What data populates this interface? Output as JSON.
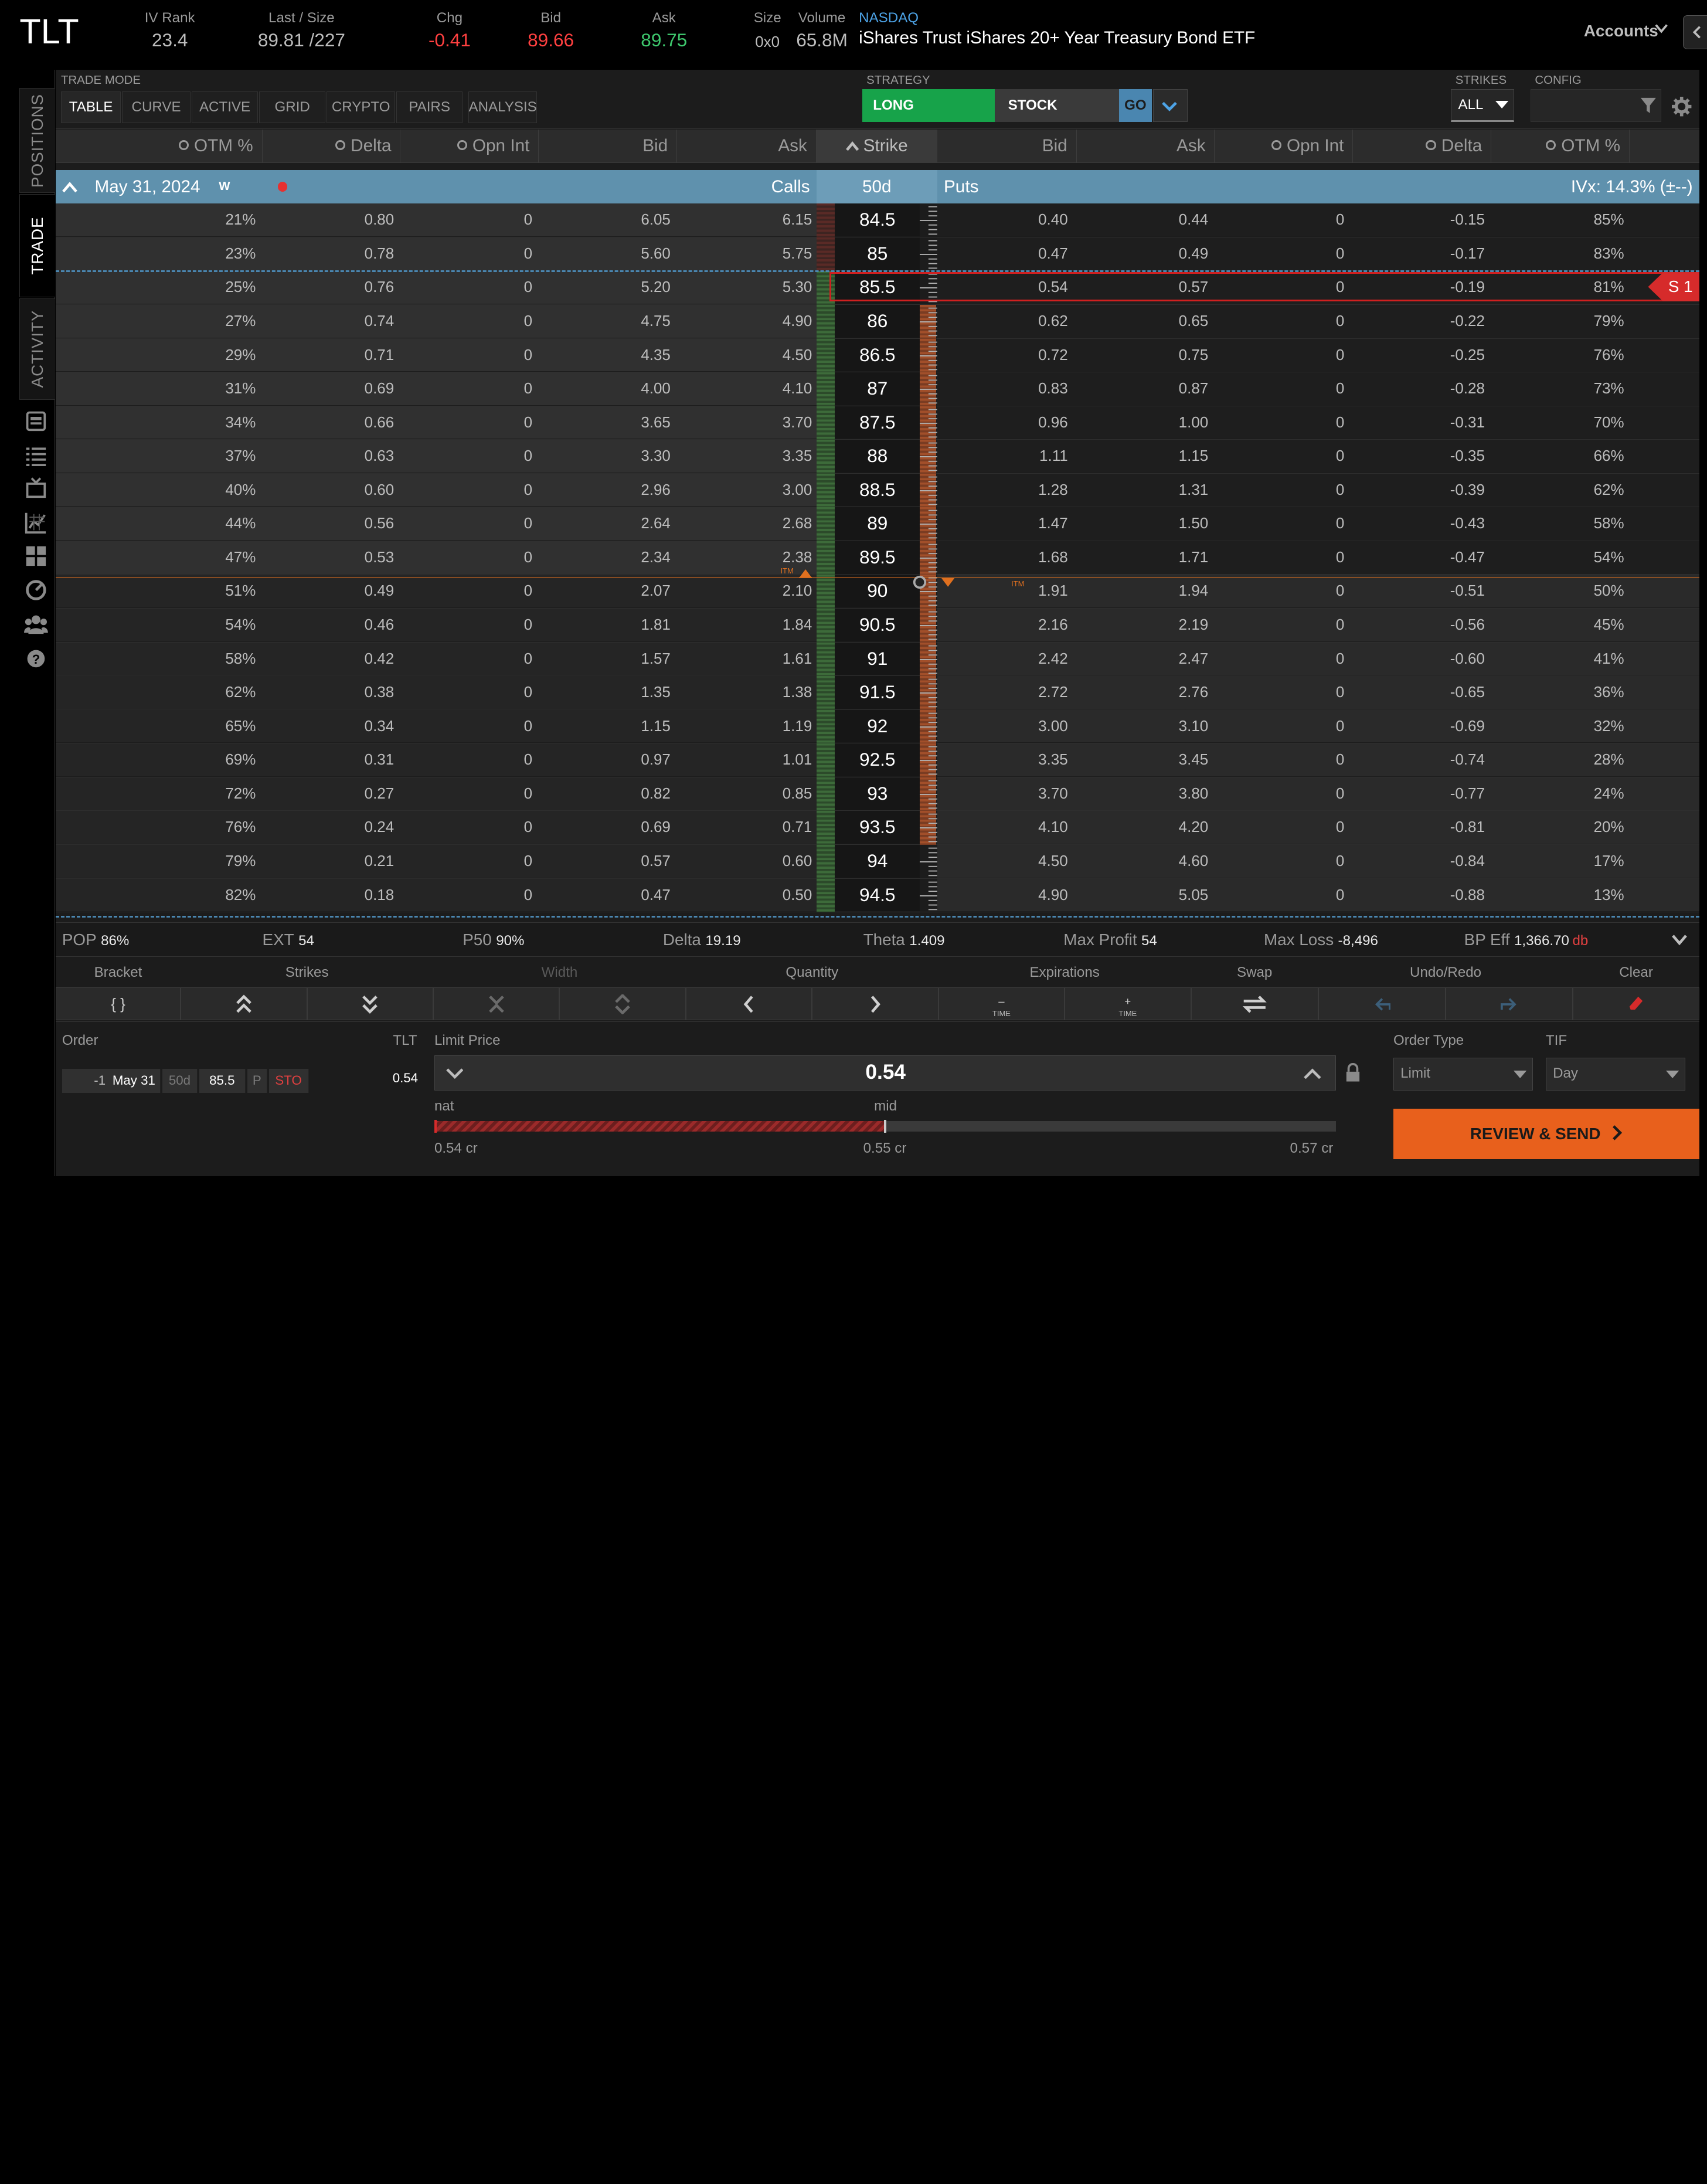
{
  "quote": {
    "symbol": "TLT",
    "iv_rank_label": "IV Rank",
    "iv_rank": "23.4",
    "last_label": "Last / Size",
    "last": "89.81 /227",
    "chg_label": "Chg",
    "chg": "-0.41",
    "bid_label": "Bid",
    "bid": "89.66",
    "ask_label": "Ask",
    "ask": "89.75",
    "size_label": "Size",
    "size": "0x0",
    "volume_label": "Volume",
    "volume": "65.8M",
    "exchange": "NASDAQ",
    "description": "iShares Trust iShares 20+ Year Treasury Bond ETF",
    "accounts": "Accounts"
  },
  "sidebar": {
    "tabs": [
      "POSITIONS",
      "TRADE",
      "ACTIVITY"
    ],
    "active": "TRADE",
    "icons": [
      "news-icon",
      "watchlist-icon",
      "tv-icon",
      "chart-icon",
      "grid-icon",
      "speedometer-icon",
      "community-icon",
      "help-icon"
    ]
  },
  "toolbar": {
    "trade_mode_label": "TRADE MODE",
    "modes": [
      "TABLE",
      "CURVE",
      "ACTIVE",
      "GRID",
      "CRYPTO",
      "PAIRS",
      "ANALYSIS"
    ],
    "active_mode": "TABLE",
    "strategy_label": "STRATEGY",
    "strategy_long": "LONG",
    "strategy_stock": "STOCK",
    "go": "GO",
    "strikes_label": "STRIKES",
    "strikes_value": "ALL",
    "config_label": "CONFIG"
  },
  "columns": {
    "calls": [
      "OTM %",
      "Delta",
      "Opn Int",
      "Bid",
      "Ask"
    ],
    "strike": "Strike",
    "puts": [
      "Bid",
      "Ask",
      "Opn Int",
      "Delta",
      "OTM %"
    ]
  },
  "expiration": {
    "date": "May 31, 2024",
    "weekly": "W",
    "calls_label": "Calls",
    "days": "50d",
    "puts_label": "Puts",
    "ivx": "IVx: 14.3% (±--)"
  },
  "rows": [
    {
      "c_otm": "21%",
      "c_delta": "0.80",
      "c_oi": "0",
      "c_bid": "6.05",
      "c_ask": "6.15",
      "strike": "84.5",
      "p_bid": "0.40",
      "p_ask": "0.44",
      "p_oi": "0",
      "p_delta": "-0.15",
      "p_otm": "85%"
    },
    {
      "c_otm": "23%",
      "c_delta": "0.78",
      "c_oi": "0",
      "c_bid": "5.60",
      "c_ask": "5.75",
      "strike": "85",
      "p_bid": "0.47",
      "p_ask": "0.49",
      "p_oi": "0",
      "p_delta": "-0.17",
      "p_otm": "83%"
    },
    {
      "c_otm": "25%",
      "c_delta": "0.76",
      "c_oi": "0",
      "c_bid": "5.20",
      "c_ask": "5.30",
      "strike": "85.5",
      "p_bid": "0.54",
      "p_ask": "0.57",
      "p_oi": "0",
      "p_delta": "-0.19",
      "p_otm": "81%",
      "selected": "S 1"
    },
    {
      "c_otm": "27%",
      "c_delta": "0.74",
      "c_oi": "0",
      "c_bid": "4.75",
      "c_ask": "4.90",
      "strike": "86",
      "p_bid": "0.62",
      "p_ask": "0.65",
      "p_oi": "0",
      "p_delta": "-0.22",
      "p_otm": "79%"
    },
    {
      "c_otm": "29%",
      "c_delta": "0.71",
      "c_oi": "0",
      "c_bid": "4.35",
      "c_ask": "4.50",
      "strike": "86.5",
      "p_bid": "0.72",
      "p_ask": "0.75",
      "p_oi": "0",
      "p_delta": "-0.25",
      "p_otm": "76%"
    },
    {
      "c_otm": "31%",
      "c_delta": "0.69",
      "c_oi": "0",
      "c_bid": "4.00",
      "c_ask": "4.10",
      "strike": "87",
      "p_bid": "0.83",
      "p_ask": "0.87",
      "p_oi": "0",
      "p_delta": "-0.28",
      "p_otm": "73%"
    },
    {
      "c_otm": "34%",
      "c_delta": "0.66",
      "c_oi": "0",
      "c_bid": "3.65",
      "c_ask": "3.70",
      "strike": "87.5",
      "p_bid": "0.96",
      "p_ask": "1.00",
      "p_oi": "0",
      "p_delta": "-0.31",
      "p_otm": "70%"
    },
    {
      "c_otm": "37%",
      "c_delta": "0.63",
      "c_oi": "0",
      "c_bid": "3.30",
      "c_ask": "3.35",
      "strike": "88",
      "p_bid": "1.11",
      "p_ask": "1.15",
      "p_oi": "0",
      "p_delta": "-0.35",
      "p_otm": "66%"
    },
    {
      "c_otm": "40%",
      "c_delta": "0.60",
      "c_oi": "0",
      "c_bid": "2.96",
      "c_ask": "3.00",
      "strike": "88.5",
      "p_bid": "1.28",
      "p_ask": "1.31",
      "p_oi": "0",
      "p_delta": "-0.39",
      "p_otm": "62%"
    },
    {
      "c_otm": "44%",
      "c_delta": "0.56",
      "c_oi": "0",
      "c_bid": "2.64",
      "c_ask": "2.68",
      "strike": "89",
      "p_bid": "1.47",
      "p_ask": "1.50",
      "p_oi": "0",
      "p_delta": "-0.43",
      "p_otm": "58%"
    },
    {
      "c_otm": "47%",
      "c_delta": "0.53",
      "c_oi": "0",
      "c_bid": "2.34",
      "c_ask": "2.38",
      "strike": "89.5",
      "p_bid": "1.68",
      "p_ask": "1.71",
      "p_oi": "0",
      "p_delta": "-0.47",
      "p_otm": "54%"
    },
    {
      "c_otm": "51%",
      "c_delta": "0.49",
      "c_oi": "0",
      "c_bid": "2.07",
      "c_ask": "2.10",
      "strike": "90",
      "p_bid": "1.91",
      "p_ask": "1.94",
      "p_oi": "0",
      "p_delta": "-0.51",
      "p_otm": "50%"
    },
    {
      "c_otm": "54%",
      "c_delta": "0.46",
      "c_oi": "0",
      "c_bid": "1.81",
      "c_ask": "1.84",
      "strike": "90.5",
      "p_bid": "2.16",
      "p_ask": "2.19",
      "p_oi": "0",
      "p_delta": "-0.56",
      "p_otm": "45%"
    },
    {
      "c_otm": "58%",
      "c_delta": "0.42",
      "c_oi": "0",
      "c_bid": "1.57",
      "c_ask": "1.61",
      "strike": "91",
      "p_bid": "2.42",
      "p_ask": "2.47",
      "p_oi": "0",
      "p_delta": "-0.60",
      "p_otm": "41%"
    },
    {
      "c_otm": "62%",
      "c_delta": "0.38",
      "c_oi": "0",
      "c_bid": "1.35",
      "c_ask": "1.38",
      "strike": "91.5",
      "p_bid": "2.72",
      "p_ask": "2.76",
      "p_oi": "0",
      "p_delta": "-0.65",
      "p_otm": "36%"
    },
    {
      "c_otm": "65%",
      "c_delta": "0.34",
      "c_oi": "0",
      "c_bid": "1.15",
      "c_ask": "1.19",
      "strike": "92",
      "p_bid": "3.00",
      "p_ask": "3.10",
      "p_oi": "0",
      "p_delta": "-0.69",
      "p_otm": "32%"
    },
    {
      "c_otm": "69%",
      "c_delta": "0.31",
      "c_oi": "0",
      "c_bid": "0.97",
      "c_ask": "1.01",
      "strike": "92.5",
      "p_bid": "3.35",
      "p_ask": "3.45",
      "p_oi": "0",
      "p_delta": "-0.74",
      "p_otm": "28%"
    },
    {
      "c_otm": "72%",
      "c_delta": "0.27",
      "c_oi": "0",
      "c_bid": "0.82",
      "c_ask": "0.85",
      "strike": "93",
      "p_bid": "3.70",
      "p_ask": "3.80",
      "p_oi": "0",
      "p_delta": "-0.77",
      "p_otm": "24%"
    },
    {
      "c_otm": "76%",
      "c_delta": "0.24",
      "c_oi": "0",
      "c_bid": "0.69",
      "c_ask": "0.71",
      "strike": "93.5",
      "p_bid": "4.10",
      "p_ask": "4.20",
      "p_oi": "0",
      "p_delta": "-0.81",
      "p_otm": "20%"
    },
    {
      "c_otm": "79%",
      "c_delta": "0.21",
      "c_oi": "0",
      "c_bid": "0.57",
      "c_ask": "0.60",
      "strike": "94",
      "p_bid": "4.50",
      "p_ask": "4.60",
      "p_oi": "0",
      "p_delta": "-0.84",
      "p_otm": "17%"
    },
    {
      "c_otm": "82%",
      "c_delta": "0.18",
      "c_oi": "0",
      "c_bid": "0.47",
      "c_ask": "0.50",
      "strike": "94.5",
      "p_bid": "4.90",
      "p_ask": "5.05",
      "p_oi": "0",
      "p_delta": "-0.88",
      "p_otm": "13%"
    }
  ],
  "itm_label": "ITM",
  "stats": {
    "pop_label": "POP",
    "pop": "86%",
    "ext_label": "EXT",
    "ext": "54",
    "p50_label": "P50",
    "p50": "90%",
    "delta_label": "Delta",
    "delta": "19.19",
    "theta_label": "Theta",
    "theta": "1.409",
    "maxprofit_label": "Max Profit",
    "maxprofit": "54",
    "maxloss_label": "Max Loss",
    "maxloss": "-8,496",
    "bpeff_label": "BP Eff",
    "bpeff": "1,366.70",
    "bpeff_unit": "db"
  },
  "tools": {
    "labels": [
      "Bracket",
      "Strikes",
      "Width",
      "Quantity",
      "Expirations",
      "Swap",
      "Undo/Redo",
      "Clear"
    ],
    "bracket_glyph": "{ }",
    "time_label": "TIME"
  },
  "order": {
    "order_label": "Order",
    "symbol": "TLT",
    "qty": "-1",
    "exp": "May 31",
    "dte": "50d",
    "strike": "85.5",
    "type": "P",
    "action": "STO",
    "price": "0.54",
    "limit_label": "Limit Price",
    "limit_value": "0.54",
    "nat_label": "nat",
    "mid_label": "mid",
    "nat_price": "0.54 cr",
    "mid_price": "0.55 cr",
    "far_price": "0.57 cr",
    "slider_fill_fraction": 0.5,
    "order_type_label": "Order Type",
    "order_type": "Limit",
    "tif_label": "TIF",
    "tif": "Day",
    "review_label": "REVIEW & SEND"
  },
  "colors": {
    "long": "#17a34a",
    "negative": "#ff4040",
    "positive": "#3ec96e",
    "expiration_bar": "#5f91ad",
    "selected_leg": "#d62b2b",
    "review_button": "#e8601c"
  }
}
